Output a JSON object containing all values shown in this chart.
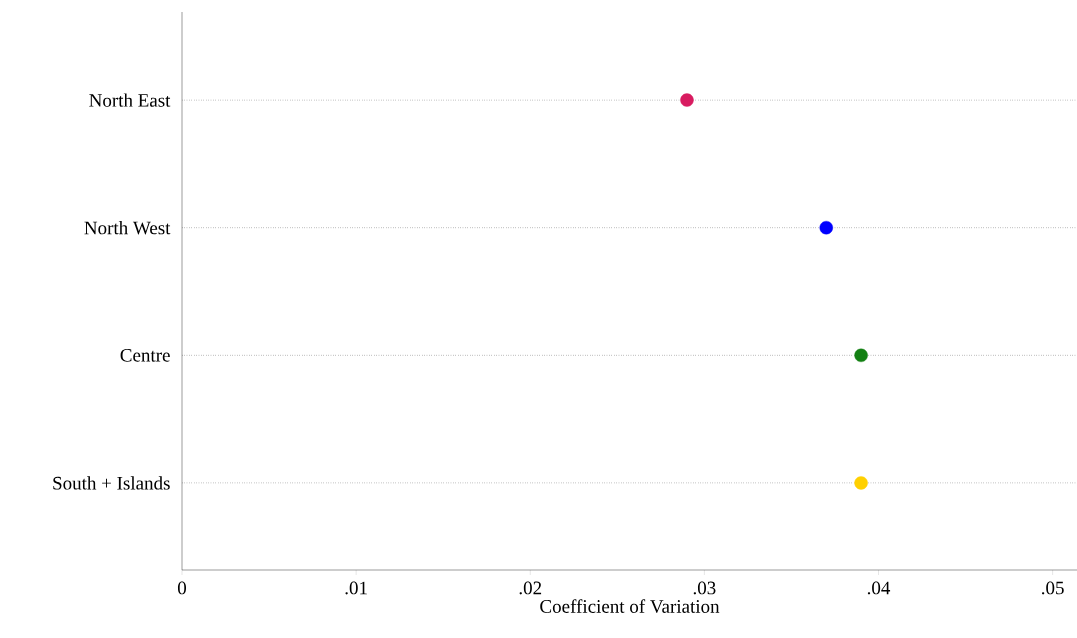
{
  "chart_data": {
    "type": "scatter",
    "xlabel": "Coefficient of Variation",
    "categories": [
      "North East",
      "North West",
      "Centre",
      "South + Islands"
    ],
    "orientation": "horizontal",
    "series": [
      {
        "values": [
          0.029,
          0.037,
          0.039,
          0.039
        ],
        "colors": [
          "#d81b60",
          "#0000ff",
          "#138013",
          "#ffd000"
        ]
      }
    ],
    "xlim": [
      0,
      0.0514
    ],
    "xticks": [
      0,
      {
        "value": 0.01,
        "label": ".01"
      },
      {
        "value": 0.02,
        "label": ".02"
      },
      {
        "value": 0.03,
        "label": ".03"
      },
      {
        "value": 0.04,
        "label": ".04"
      },
      {
        "value": 0.05,
        "label": ".05"
      }
    ],
    "grid": "y",
    "marker": "circle"
  }
}
